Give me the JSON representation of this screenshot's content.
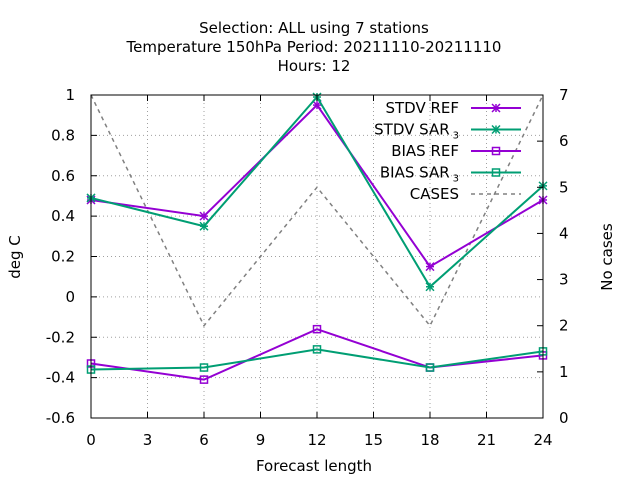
{
  "chart_data": {
    "type": "line",
    "title_lines": [
      "Selection: ALL using     7 stations",
      "Temperature 150hPa   Period: 20211110-20211110",
      "Hours:  12"
    ],
    "xlabel": "Forecast length",
    "ylabel": "deg C",
    "y2label": "No cases",
    "x": [
      0,
      6,
      12,
      18,
      24
    ],
    "xlim": [
      0,
      24
    ],
    "ylim": [
      -0.6,
      1.0
    ],
    "y2lim": [
      0,
      7
    ],
    "xticks": [
      "0",
      "3",
      "6",
      "9",
      "12",
      "15",
      "18",
      "21",
      "24"
    ],
    "yticks": [
      "-0.6",
      "-0.4",
      "-0.2",
      "0",
      "0.2",
      "0.4",
      "0.6",
      "0.8",
      "1"
    ],
    "y2ticks": [
      "0",
      "1",
      "2",
      "3",
      "4",
      "5",
      "6",
      "7"
    ],
    "grid": true,
    "legend_position": "top-right",
    "series": [
      {
        "name": "STDV REF",
        "sub": "",
        "axis": "y",
        "color": "#9400d3",
        "dash": false,
        "marker": "star",
        "values": [
          0.48,
          0.4,
          0.95,
          0.15,
          0.48
        ]
      },
      {
        "name": "STDV SAR",
        "sub": "3",
        "axis": "y",
        "color": "#009e73",
        "dash": false,
        "marker": "star",
        "values": [
          0.49,
          0.35,
          0.99,
          0.05,
          0.55
        ]
      },
      {
        "name": "BIAS REF",
        "sub": "",
        "axis": "y",
        "color": "#9400d3",
        "dash": false,
        "marker": "square",
        "values": [
          -0.33,
          -0.41,
          -0.16,
          -0.35,
          -0.29
        ]
      },
      {
        "name": "BIAS SAR",
        "sub": "3",
        "axis": "y",
        "color": "#009e73",
        "dash": false,
        "marker": "square",
        "values": [
          -0.36,
          -0.35,
          -0.26,
          -0.35,
          -0.27
        ]
      },
      {
        "name": "CASES",
        "sub": "",
        "axis": "y2",
        "color": "#808080",
        "dash": true,
        "marker": "none",
        "values": [
          7,
          2,
          5,
          2,
          7
        ]
      }
    ]
  }
}
